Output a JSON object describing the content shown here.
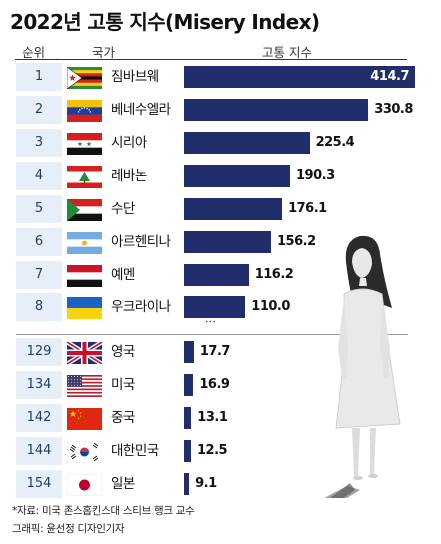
{
  "title": "2022년 고통 지수(Misery Index)",
  "headers": {
    "rank": "순위",
    "country": "국가",
    "value": "고통 지수"
  },
  "ellipsis": "⋮",
  "footer": {
    "source": "*자료: 미국 존스홉킨스대 스티브 행크 교수",
    "credit": "그래픽: 윤선정 디자인기자"
  },
  "colors": {
    "bar": "#222d6b",
    "rank_bg": "#e6eef7"
  },
  "chart_data": {
    "type": "bar",
    "orientation": "horizontal",
    "title": "2022년 고통 지수(Misery Index)",
    "categories": [
      "짐바브웨",
      "베네수엘라",
      "시리아",
      "레바논",
      "수단",
      "아르헨티나",
      "예멘",
      "우크라이나",
      "영국",
      "미국",
      "중국",
      "대한민국",
      "일본"
    ],
    "series": [
      {
        "values": [
          414.7,
          330.8,
          225.4,
          190.3,
          176.1,
          156.2,
          116.2,
          110.0,
          17.7,
          16.9,
          13.1,
          12.5,
          9.1
        ]
      }
    ],
    "rows": [
      {
        "rank": "1",
        "country": "짐바브웨",
        "value": 414.7,
        "label": "414.7",
        "flag": "zimbabwe-flag"
      },
      {
        "rank": "2",
        "country": "베네수엘라",
        "value": 330.8,
        "label": "330.8",
        "flag": "venezuela-flag"
      },
      {
        "rank": "3",
        "country": "시리아",
        "value": 225.4,
        "label": "225.4",
        "flag": "syria-flag"
      },
      {
        "rank": "4",
        "country": "레바논",
        "value": 190.3,
        "label": "190.3",
        "flag": "lebanon-flag"
      },
      {
        "rank": "5",
        "country": "수단",
        "value": 176.1,
        "label": "176.1",
        "flag": "sudan-flag"
      },
      {
        "rank": "6",
        "country": "아르헨티나",
        "value": 156.2,
        "label": "156.2",
        "flag": "argentina-flag"
      },
      {
        "rank": "7",
        "country": "예멘",
        "value": 116.2,
        "label": "116.2",
        "flag": "yemen-flag"
      },
      {
        "rank": "8",
        "country": "우크라이나",
        "value": 110.0,
        "label": "110.0",
        "flag": "ukraine-flag"
      },
      {
        "rank": "129",
        "country": "영국",
        "value": 17.7,
        "label": "17.7",
        "flag": "uk-flag"
      },
      {
        "rank": "134",
        "country": "미국",
        "value": 16.9,
        "label": "16.9",
        "flag": "usa-flag"
      },
      {
        "rank": "142",
        "country": "중국",
        "value": 13.1,
        "label": "13.1",
        "flag": "china-flag"
      },
      {
        "rank": "144",
        "country": "대한민국",
        "value": 12.5,
        "label": "12.5",
        "flag": "south-korea-flag"
      },
      {
        "rank": "154",
        "country": "일본",
        "value": 9.1,
        "label": "9.1",
        "flag": "japan-flag"
      }
    ],
    "xlim": [
      0,
      414.7
    ],
    "grid": false,
    "legend": "none"
  }
}
